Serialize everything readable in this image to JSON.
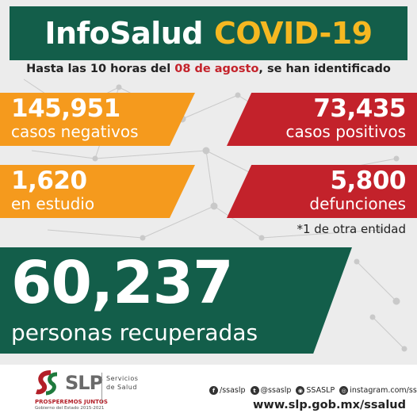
{
  "header": {
    "title_part1": "InfoSalud",
    "title_part2": "COVID-19"
  },
  "subtitle": {
    "prefix": "Hasta las 10 horas del ",
    "date": "08 de agosto",
    "suffix": ", se han identificado"
  },
  "stats": {
    "negativos": {
      "value": "145,951",
      "label": "casos negativos"
    },
    "positivos": {
      "value": "73,435",
      "label": "casos positivos"
    },
    "estudio": {
      "value": "1,620",
      "label": "en estudio"
    },
    "defunciones": {
      "value": "5,800",
      "label": "defunciones"
    },
    "recuperadas": {
      "value": "60,237",
      "label": "personas recuperadas"
    }
  },
  "note": "*1 de otra entidad",
  "footer": {
    "logo_text": "SLP",
    "logo_slogan": "PROSPEREMOS JUNTOS",
    "logo_gov": "Gobierno del Estado 2015-2021",
    "servicios_line1": "Servicios",
    "servicios_line2": "de Salud",
    "social": {
      "facebook": "/ssaslp",
      "twitter": "@ssaslp",
      "other": "SSASLP",
      "instagram": "instagram.com/ssaslp"
    },
    "website": "www.slp.gob.mx/ssalud"
  },
  "colors": {
    "green": "#135e4a",
    "yellow": "#f5b821",
    "orange": "#f59a1d",
    "red": "#c3222b"
  }
}
